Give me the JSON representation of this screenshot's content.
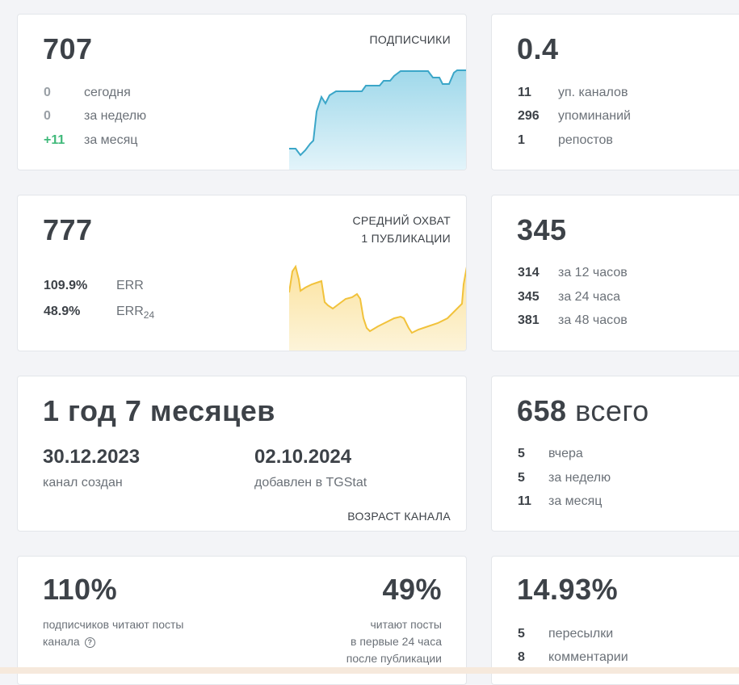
{
  "subscribers": {
    "value": "707",
    "caption": "ПОДПИСЧИКИ",
    "rows": [
      {
        "num": "0",
        "label": "сегодня"
      },
      {
        "num": "0",
        "label": "за неделю"
      },
      {
        "num": "+11",
        "label": "за месяц"
      }
    ],
    "color": "#3ba6c8"
  },
  "citation": {
    "value": "0.4",
    "rows": [
      {
        "num": "11",
        "label": "уп. каналов"
      },
      {
        "num": "296",
        "label": "упоминаний"
      },
      {
        "num": "1",
        "label": "репостов"
      }
    ]
  },
  "reach": {
    "value": "777",
    "caption_line1": "СРЕДНИЙ ОХВАТ",
    "caption_line2": "1 ПУБЛИКАЦИИ",
    "rows": [
      {
        "num": "109.9%",
        "label": "ERR"
      },
      {
        "num": "48.9%",
        "label": "ERR",
        "label_sub": "24"
      }
    ],
    "color": "#f1c23b"
  },
  "posts_reach": {
    "value": "345",
    "rows": [
      {
        "num": "314",
        "label": "за 12 часов"
      },
      {
        "num": "345",
        "label": "за 24 часа"
      },
      {
        "num": "381",
        "label": "за 48 часов"
      }
    ]
  },
  "age": {
    "value": "1 год 7 месяцев",
    "created_date": "30.12.2023",
    "created_label": "канал создан",
    "added_date": "02.10.2024",
    "added_label": "добавлен в TGStat",
    "caption": "ВОЗРАСТ КАНАЛА"
  },
  "posts": {
    "value_num": "658",
    "value_word": "всего",
    "rows": [
      {
        "num": "5",
        "label": "вчера"
      },
      {
        "num": "5",
        "label": "за неделю"
      },
      {
        "num": "11",
        "label": "за месяц"
      }
    ]
  },
  "readers": {
    "value": "110%",
    "text_line1": "подписчиков читают посты",
    "text_line2": "канала",
    "help_icon": "?",
    "value2": "49%",
    "text2_line1": "читают посты",
    "text2_line2": "в первые 24 часа",
    "text2_line3": "после публикации"
  },
  "engagement": {
    "value": "14.93%",
    "rows": [
      {
        "num": "5",
        "label": "пересылки"
      },
      {
        "num": "8",
        "label": "комментарии"
      }
    ]
  }
}
